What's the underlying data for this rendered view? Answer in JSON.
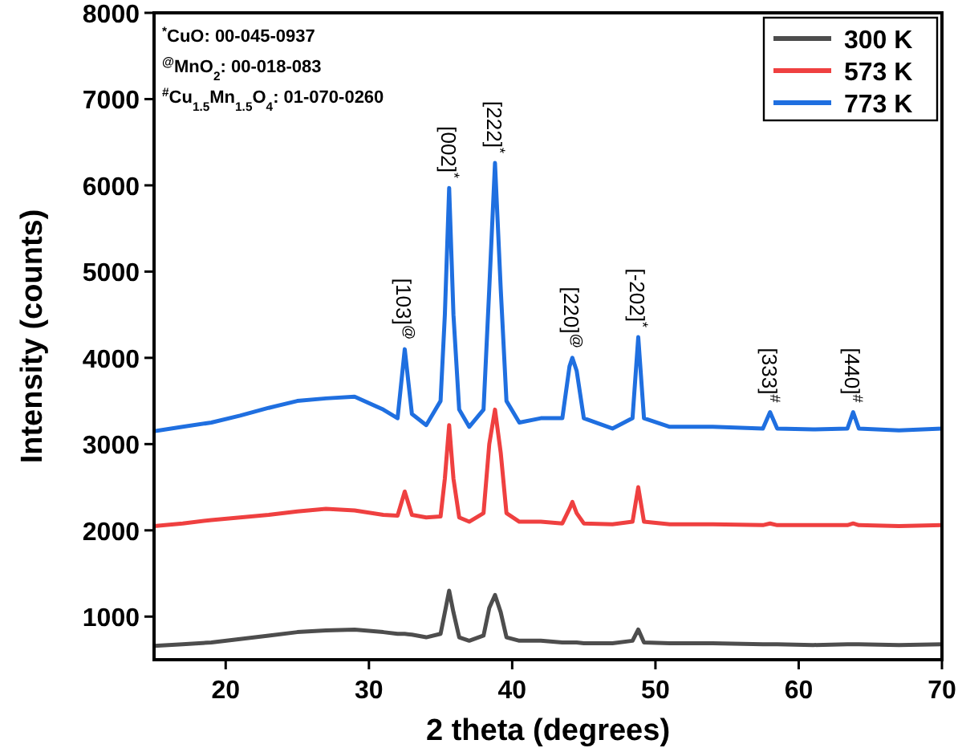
{
  "chart_data": {
    "type": "line",
    "xlabel": "2 theta (degrees)",
    "ylabel": "Intensity (counts)",
    "x": [
      15,
      17,
      19,
      21,
      23,
      25,
      27,
      29,
      31,
      32,
      32.5,
      33,
      34,
      35,
      35.3,
      35.6,
      35.9,
      36.3,
      37,
      38,
      38.4,
      38.8,
      39.2,
      39.6,
      40.5,
      42,
      43.5,
      44,
      44.2,
      44.5,
      45,
      47,
      48.4,
      48.8,
      49.2,
      51,
      54,
      57.5,
      58,
      58.5,
      61,
      63.4,
      63.8,
      64.2,
      67,
      70
    ],
    "series": [
      {
        "name": "300 K",
        "color": "#4d4d4d",
        "values": [
          660,
          680,
          700,
          740,
          780,
          820,
          840,
          850,
          820,
          800,
          800,
          790,
          760,
          800,
          1050,
          1300,
          1050,
          760,
          720,
          780,
          1100,
          1250,
          1050,
          760,
          720,
          720,
          700,
          700,
          700,
          700,
          690,
          690,
          720,
          850,
          700,
          690,
          690,
          680,
          680,
          680,
          670,
          680,
          680,
          680,
          670,
          680
        ]
      },
      {
        "name": "573 K",
        "color": "#ef4040",
        "values": [
          2050,
          2080,
          2120,
          2150,
          2180,
          2220,
          2250,
          2230,
          2180,
          2170,
          2450,
          2180,
          2150,
          2160,
          2600,
          3220,
          2600,
          2150,
          2100,
          2200,
          3000,
          3400,
          2900,
          2200,
          2100,
          2100,
          2080,
          2250,
          2330,
          2200,
          2080,
          2070,
          2100,
          2500,
          2100,
          2070,
          2070,
          2060,
          2080,
          2060,
          2060,
          2060,
          2080,
          2060,
          2050,
          2060
        ]
      },
      {
        "name": "773 K",
        "color": "#1f6fe0",
        "values": [
          3150,
          3200,
          3250,
          3330,
          3420,
          3500,
          3530,
          3550,
          3400,
          3300,
          4100,
          3350,
          3220,
          3500,
          4500,
          5970,
          4500,
          3400,
          3200,
          3400,
          4800,
          6260,
          4800,
          3500,
          3250,
          3300,
          3300,
          3900,
          4000,
          3850,
          3300,
          3180,
          3300,
          4240,
          3300,
          3200,
          3200,
          3180,
          3370,
          3180,
          3170,
          3180,
          3370,
          3180,
          3160,
          3180
        ]
      }
    ],
    "xlim": [
      15,
      70
    ],
    "xticks": [
      20,
      30,
      40,
      50,
      60,
      70
    ],
    "ylim": [
      500,
      8000
    ],
    "yticks": [
      1000,
      2000,
      3000,
      4000,
      5000,
      6000,
      7000,
      8000
    ],
    "grid": false,
    "legend": "top right",
    "line_style": "solid",
    "marker": "none",
    "annotations": [
      "$^{*}$CuO: 00-045-0937",
      "$^{@}$MnO$_{2}$: 00-018-083",
      "$^{#}$Cu$_{1.5}$Mn$_{1.5}$O$_{4}$: 01-070-0260",
      {
        "text": "[103]$^{@}$",
        "x": 32.5,
        "y": 4100
      },
      {
        "text": "[002]$^{*}$",
        "x": 35.6,
        "y": 5970
      },
      {
        "text": "[222]$^{*}$",
        "x": 38.8,
        "y": 6260
      },
      {
        "text": "[220]$^{@}$",
        "x": 44.2,
        "y": 4000
      },
      {
        "text": "[-202]$^{*}$",
        "x": 48.8,
        "y": 4240
      },
      {
        "text": "[333]$^{#}$",
        "x": 58,
        "y": 3370
      },
      {
        "text": "[440]$^{#}$",
        "x": 63.8,
        "y": 3370
      }
    ]
  }
}
